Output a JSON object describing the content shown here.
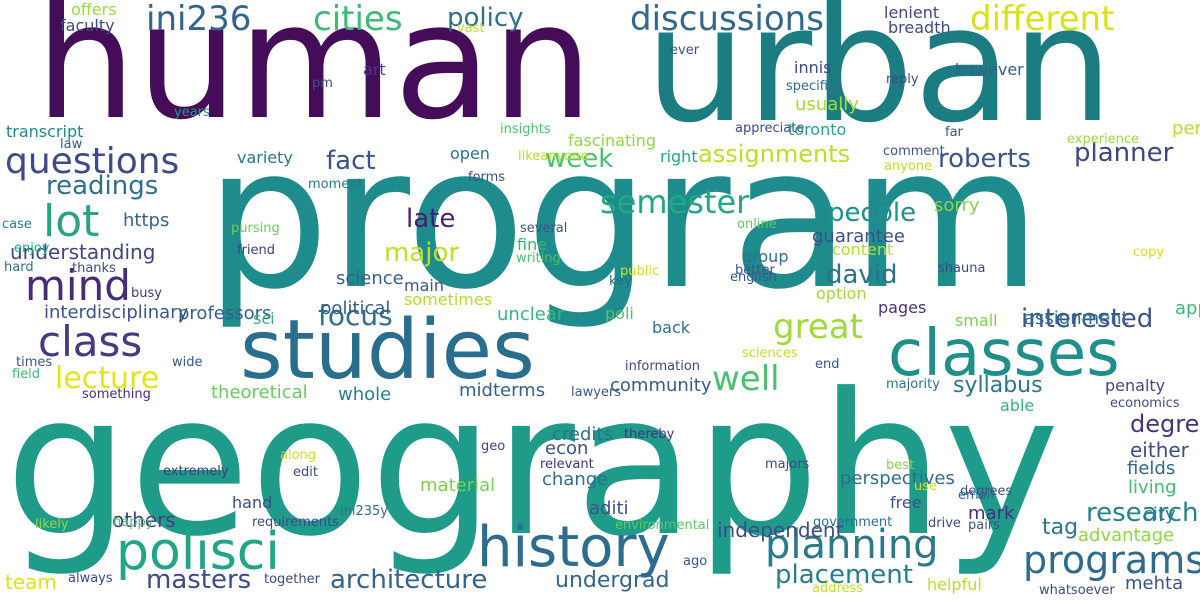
{
  "words": [
    {
      "text": "program",
      "color": "#1e8c8c"
    },
    {
      "text": "geography",
      "color": "#1f9b8a"
    },
    {
      "text": "human",
      "color": "#450c5a"
    },
    {
      "text": "urban",
      "color": "#1b7d82"
    },
    {
      "text": "studies",
      "color": "#2a6e8e"
    },
    {
      "text": "classes",
      "color": "#1f8f8c"
    },
    {
      "text": "history",
      "color": "#2c6c8e"
    },
    {
      "text": "polisci",
      "color": "#20a586"
    },
    {
      "text": "planning",
      "color": "#2b7a8c"
    },
    {
      "text": "programs",
      "color": "#2f6b8e"
    },
    {
      "text": "questions",
      "color": "#3e4a89"
    },
    {
      "text": "class",
      "color": "#433c84"
    },
    {
      "text": "mind",
      "color": "#472a7a"
    },
    {
      "text": "lot",
      "color": "#2aa383"
    },
    {
      "text": "cities",
      "color": "#3bbb75"
    },
    {
      "text": "ini236",
      "color": "#33648d"
    },
    {
      "text": "discussions",
      "color": "#31688e"
    },
    {
      "text": "different",
      "color": "#d8e219"
    },
    {
      "text": "policy",
      "color": "#2d708e"
    },
    {
      "text": "semester",
      "color": "#22a884"
    },
    {
      "text": "great",
      "color": "#9fda3a"
    },
    {
      "text": "well",
      "color": "#4ac16d"
    },
    {
      "text": "lecture",
      "color": "#e5e419"
    },
    {
      "text": "readings",
      "color": "#2e6f8e"
    },
    {
      "text": "week",
      "color": "#48c16e"
    },
    {
      "text": "fact",
      "color": "#3b528b"
    },
    {
      "text": "late",
      "color": "#481f70"
    },
    {
      "text": "major",
      "color": "#c2df23"
    },
    {
      "text": "focus",
      "color": "#2d708e"
    },
    {
      "text": "people",
      "color": "#21908d"
    },
    {
      "text": "david",
      "color": "#2c728e"
    },
    {
      "text": "assignments",
      "color": "#bddf26"
    },
    {
      "text": "roberts",
      "color": "#39568c"
    },
    {
      "text": "planner",
      "color": "#414487"
    },
    {
      "text": "interested",
      "color": "#3a548c"
    },
    {
      "text": "research",
      "color": "#25838e"
    },
    {
      "text": "architecture",
      "color": "#33638d"
    },
    {
      "text": "masters",
      "color": "#3f4a8a"
    },
    {
      "text": "placement",
      "color": "#287d8e"
    },
    {
      "text": "undergrad",
      "color": "#31668e"
    },
    {
      "text": "syllabus",
      "color": "#2a768e"
    },
    {
      "text": "degree",
      "color": "#453581"
    },
    {
      "text": "either",
      "color": "#3e4c8a"
    },
    {
      "text": "fields",
      "color": "#31678e"
    },
    {
      "text": "living",
      "color": "#3fbc73"
    },
    {
      "text": "city",
      "color": "#287d8e"
    },
    {
      "text": "advantage",
      "color": "#8fd744"
    },
    {
      "text": "mehta",
      "color": "#3b528b"
    },
    {
      "text": "team",
      "color": "#dde318"
    },
    {
      "text": "tag",
      "color": "#2a788e"
    },
    {
      "text": "mark",
      "color": "#472d7b"
    },
    {
      "text": "aditi",
      "color": "#3b528b"
    },
    {
      "text": "credits",
      "color": "#2c718e"
    },
    {
      "text": "econ",
      "color": "#3a538b"
    },
    {
      "text": "change",
      "color": "#2d708e"
    },
    {
      "text": "material",
      "color": "#7ad151"
    },
    {
      "text": "midterms",
      "color": "#35608d"
    },
    {
      "text": "whole",
      "color": "#26828e"
    },
    {
      "text": "theoretical",
      "color": "#67cc5c"
    },
    {
      "text": "community",
      "color": "#38598c"
    },
    {
      "text": "interdisciplinary",
      "color": "#3a548c"
    },
    {
      "text": "understanding",
      "color": "#414487"
    },
    {
      "text": "https",
      "color": "#32648e"
    },
    {
      "text": "others",
      "color": "#433e85"
    },
    {
      "text": "independent",
      "color": "#3e4a89"
    },
    {
      "text": "perspectives",
      "color": "#2d708e"
    },
    {
      "text": "approachable",
      "color": "#3aba76"
    },
    {
      "text": "assignment",
      "color": "#2e6e8e"
    },
    {
      "text": "political",
      "color": "#355e8d"
    },
    {
      "text": "science",
      "color": "#33628d"
    },
    {
      "text": "professors",
      "color": "#34608d"
    },
    {
      "text": "personally",
      "color": "#b8de29"
    },
    {
      "text": "sorry",
      "color": "#8bd646"
    },
    {
      "text": "guarantee",
      "color": "#3c4f8a"
    },
    {
      "text": "content",
      "color": "#b5de2b"
    },
    {
      "text": "option",
      "color": "#a2da37"
    },
    {
      "text": "pages",
      "color": "#463480"
    },
    {
      "text": "small",
      "color": "#7cd250"
    },
    {
      "text": "penalty",
      "color": "#3f4788"
    },
    {
      "text": "able",
      "color": "#34b679"
    },
    {
      "text": "free",
      "color": "#3b528b"
    },
    {
      "text": "hand",
      "color": "#3e4989"
    },
    {
      "text": "unclear",
      "color": "#35b779"
    },
    {
      "text": "main",
      "color": "#39568c"
    },
    {
      "text": "sometimes",
      "color": "#b2dd2d"
    },
    {
      "text": "poli",
      "color": "#50c46a"
    },
    {
      "text": "sci",
      "color": "#31b57b"
    },
    {
      "text": "back",
      "color": "#2d708e"
    },
    {
      "text": "open",
      "color": "#2c728e"
    },
    {
      "text": "fine",
      "color": "#34b679"
    },
    {
      "text": "writing",
      "color": "#48c16e"
    },
    {
      "text": "several",
      "color": "#3b528b"
    },
    {
      "text": "faculty",
      "color": "#3e4a89"
    },
    {
      "text": "offers",
      "color": "#9bd93c"
    },
    {
      "text": "vast",
      "color": "#c0df25"
    },
    {
      "text": "art",
      "color": "#443983"
    },
    {
      "text": "pm",
      "color": "#3c4f8a"
    },
    {
      "text": "years",
      "color": "#1f9a8a"
    },
    {
      "text": "transcript",
      "color": "#23898e"
    },
    {
      "text": "law",
      "color": "#38598c"
    },
    {
      "text": "case",
      "color": "#287c8e"
    },
    {
      "text": "enjoy",
      "color": "#22a785"
    },
    {
      "text": "hard",
      "color": "#2d718e"
    },
    {
      "text": "thanks",
      "color": "#3e4989"
    },
    {
      "text": "busy",
      "color": "#46337f"
    },
    {
      "text": "friend",
      "color": "#433d84"
    },
    {
      "text": "pursing",
      "color": "#6ccd5a"
    },
    {
      "text": "variety",
      "color": "#2a778e"
    },
    {
      "text": "moment",
      "color": "#2a768e"
    },
    {
      "text": "forms",
      "color": "#3a548c"
    },
    {
      "text": "right",
      "color": "#22a785"
    },
    {
      "text": "insights",
      "color": "#4ac16d"
    },
    {
      "text": "likeanyone",
      "color": "#b5de2b"
    },
    {
      "text": "fascinating",
      "color": "#8fd744"
    },
    {
      "text": "ever",
      "color": "#3b528b"
    },
    {
      "text": "appreciate",
      "color": "#3e4a89"
    },
    {
      "text": "innis",
      "color": "#3f4788"
    },
    {
      "text": "specifics",
      "color": "#2f6c8e"
    },
    {
      "text": "usually",
      "color": "#a2da37"
    },
    {
      "text": "toronto",
      "color": "#22a785"
    },
    {
      "text": "however",
      "color": "#35608d"
    },
    {
      "text": "reply",
      "color": "#3e4c8a"
    },
    {
      "text": "experience",
      "color": "#9bd93c"
    },
    {
      "text": "comment",
      "color": "#3a548c"
    },
    {
      "text": "anyone",
      "color": "#bddf26"
    },
    {
      "text": "far",
      "color": "#3b528b"
    },
    {
      "text": "lenient",
      "color": "#3f4788"
    },
    {
      "text": "breadth",
      "color": "#3e4989"
    },
    {
      "text": "online",
      "color": "#5ec962"
    },
    {
      "text": "better",
      "color": "#3b528b"
    },
    {
      "text": "english",
      "color": "#39568c"
    },
    {
      "text": "group",
      "color": "#2c728e"
    },
    {
      "text": "shauna",
      "color": "#3e4989"
    },
    {
      "text": "copy",
      "color": "#d8e219"
    },
    {
      "text": "public",
      "color": "#d0e11c"
    },
    {
      "text": "key",
      "color": "#31688e"
    },
    {
      "text": "information",
      "color": "#3f4788"
    },
    {
      "text": "sciences",
      "color": "#c2df23"
    },
    {
      "text": "lawyers",
      "color": "#3a548c"
    },
    {
      "text": "end",
      "color": "#3b528b"
    },
    {
      "text": "majority",
      "color": "#2c728e"
    },
    {
      "text": "economics",
      "color": "#3e4c8a"
    },
    {
      "text": "thereby",
      "color": "#46337f"
    },
    {
      "text": "geo",
      "color": "#433e85"
    },
    {
      "text": "relevant",
      "color": "#472f7d"
    },
    {
      "text": "ini235y",
      "color": "#2e6f8e"
    },
    {
      "text": "majors",
      "color": "#3e4989"
    },
    {
      "text": "best",
      "color": "#84d44b"
    },
    {
      "text": "use",
      "color": "#d0e11c"
    },
    {
      "text": "degrees",
      "color": "#3e4c8a"
    },
    {
      "text": "email",
      "color": "#31688e"
    },
    {
      "text": "along",
      "color": "#c8e020"
    },
    {
      "text": "edit",
      "color": "#3e4a89"
    },
    {
      "text": "extremely",
      "color": "#443983"
    },
    {
      "text": "something",
      "color": "#472d7b"
    },
    {
      "text": "field",
      "color": "#3bbb75"
    },
    {
      "text": "times",
      "color": "#3b528b"
    },
    {
      "text": "wide",
      "color": "#38598c"
    },
    {
      "text": "likely",
      "color": "#8fd744"
    },
    {
      "text": "happy",
      "color": "#48c16e"
    },
    {
      "text": "requirements",
      "color": "#3f4788"
    },
    {
      "text": "environmental",
      "color": "#5ec962"
    },
    {
      "text": "government",
      "color": "#2c728e"
    },
    {
      "text": "drive",
      "color": "#3e4a89"
    },
    {
      "text": "pairs",
      "color": "#3b528b"
    },
    {
      "text": "ago",
      "color": "#39568c"
    },
    {
      "text": "always",
      "color": "#3e4989"
    },
    {
      "text": "together",
      "color": "#3f4788"
    },
    {
      "text": "helpful",
      "color": "#b8de29"
    },
    {
      "text": "address",
      "color": "#c0df25"
    },
    {
      "text": "whatsoever",
      "color": "#3e4989"
    }
  ]
}
